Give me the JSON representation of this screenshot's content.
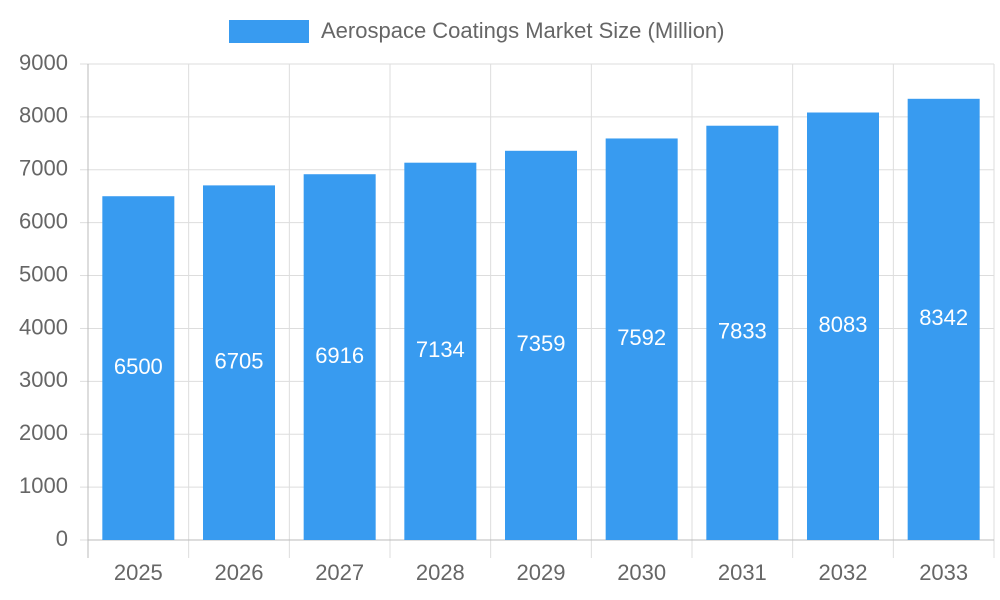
{
  "chart_data": {
    "type": "bar",
    "categories": [
      "2025",
      "2026",
      "2027",
      "2028",
      "2029",
      "2030",
      "2031",
      "2032",
      "2033"
    ],
    "series": [
      {
        "name": "Aerospace Coatings Market Size (Million)",
        "color": "#389bf0",
        "values": [
          6500,
          6705,
          6916,
          7134,
          7359,
          7592,
          7833,
          8083,
          8342
        ]
      }
    ],
    "ylim": [
      0,
      9000
    ],
    "yticks": [
      0,
      1000,
      2000,
      3000,
      4000,
      5000,
      6000,
      7000,
      8000,
      9000
    ],
    "grid": true,
    "legend": "top"
  }
}
